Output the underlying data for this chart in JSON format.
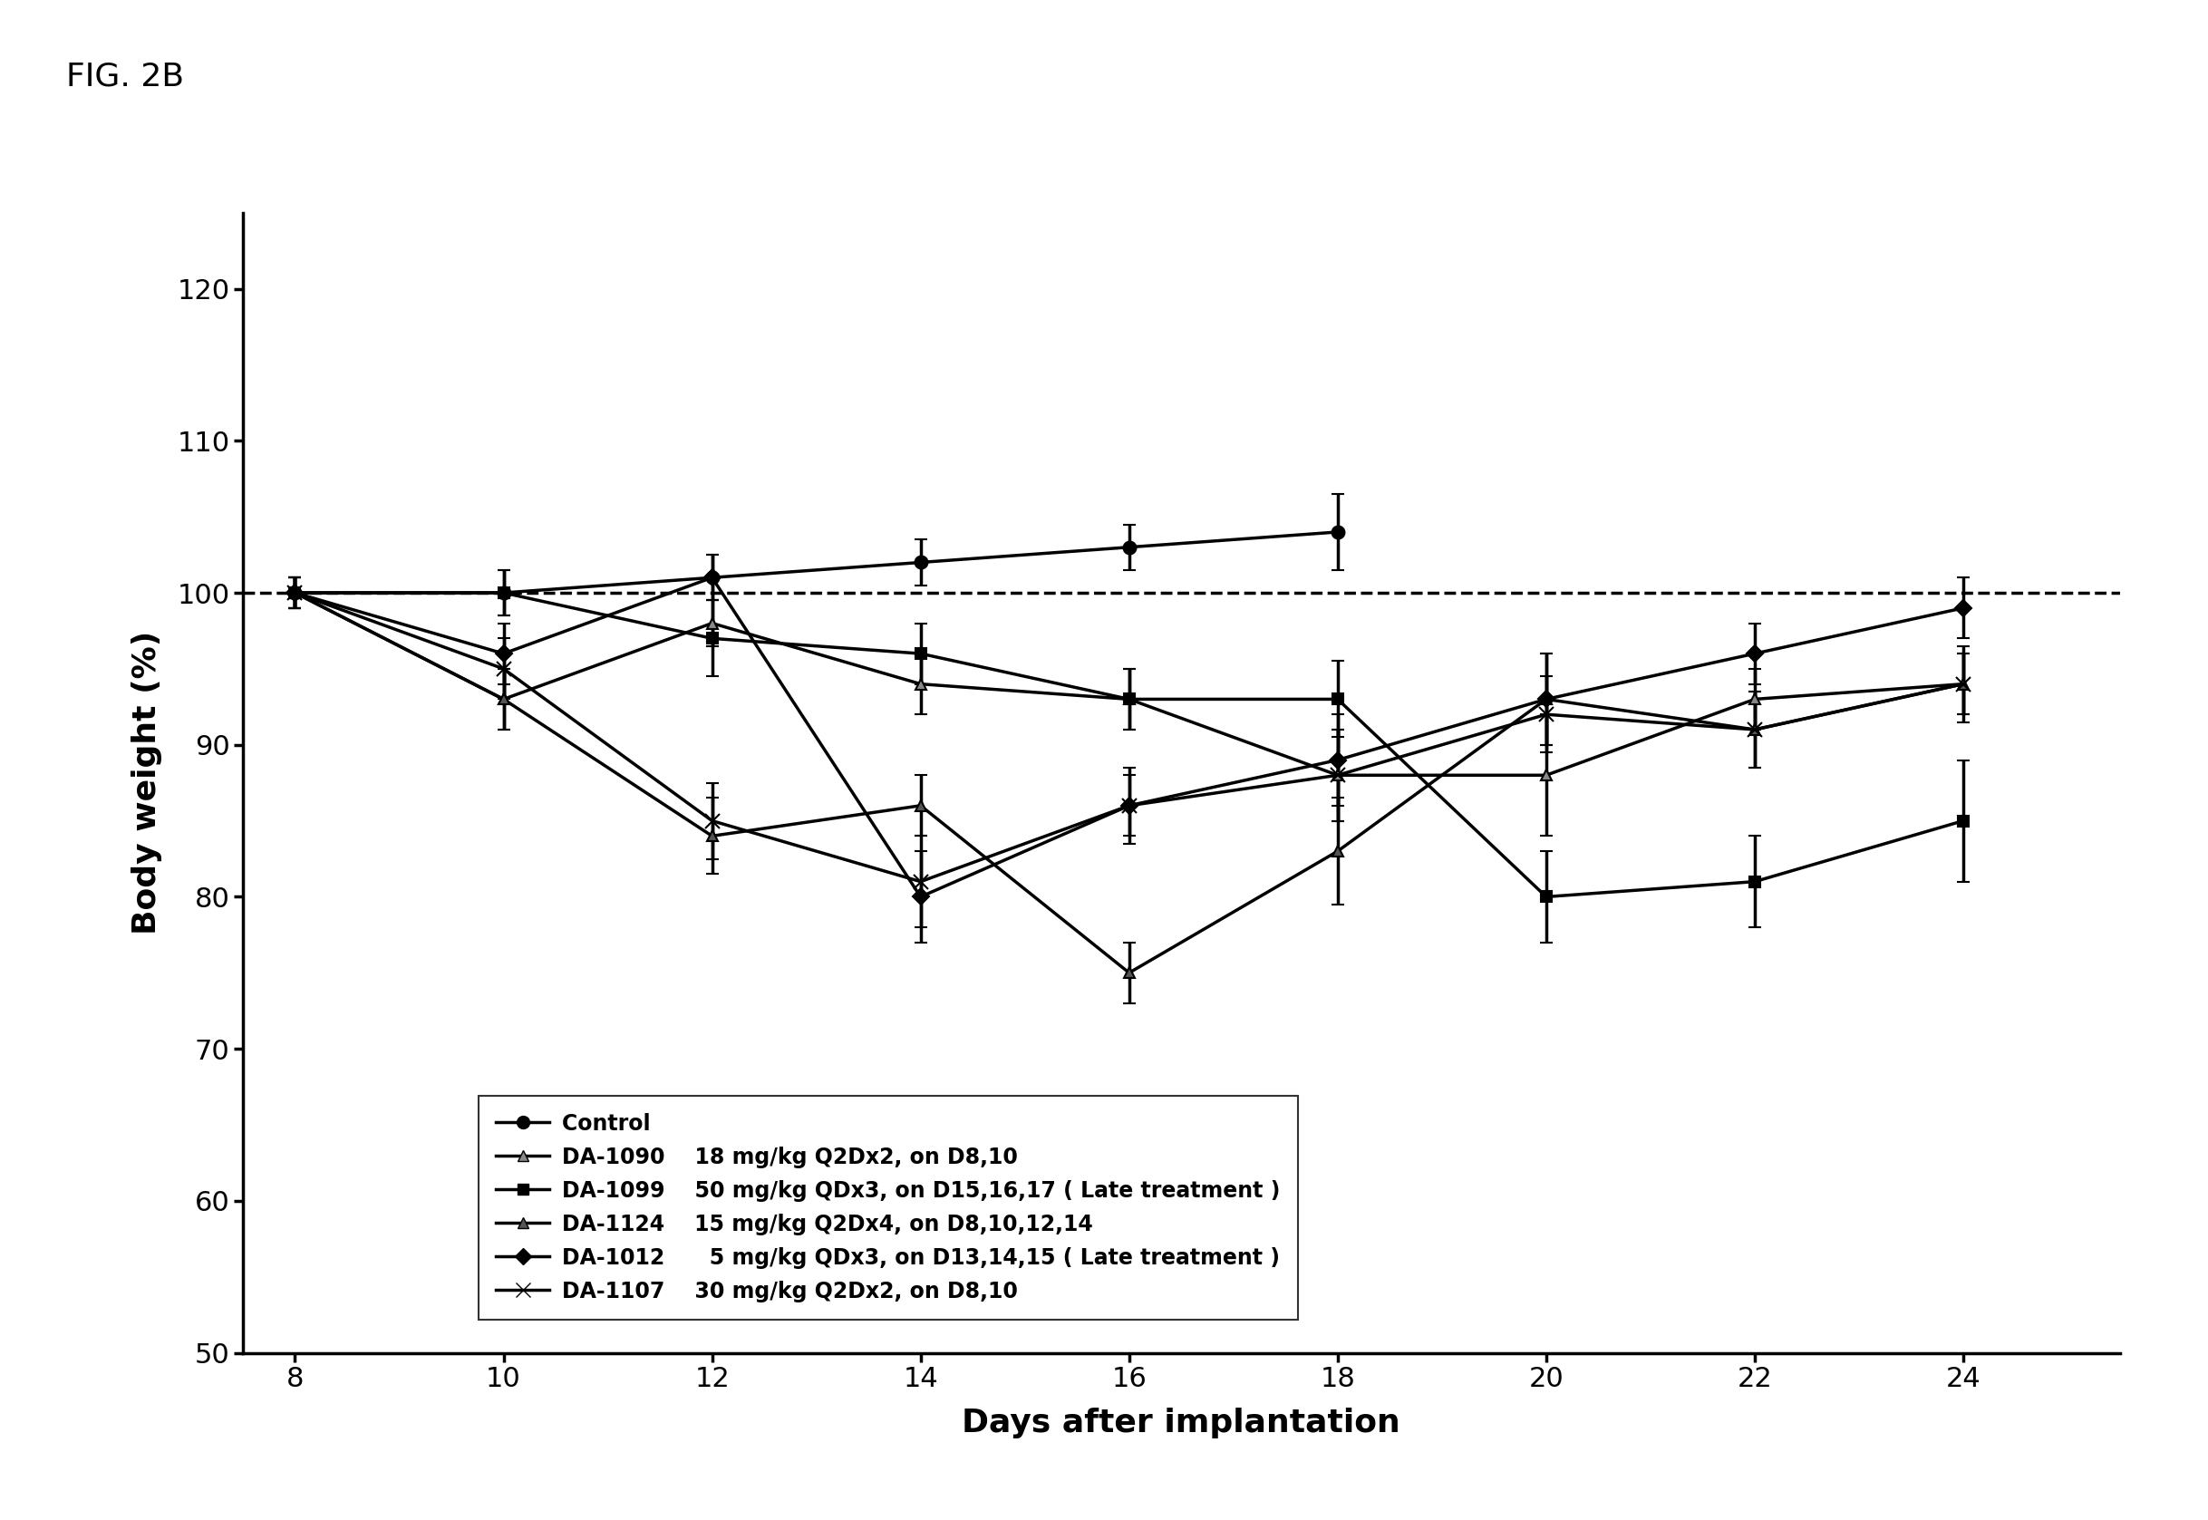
{
  "title": "FIG. 2B",
  "xlabel": "Days after implantation",
  "ylabel": "Body weight (%)",
  "xlim": [
    7.5,
    25.5
  ],
  "ylim": [
    50,
    125
  ],
  "yticks": [
    50,
    60,
    70,
    80,
    90,
    100,
    110,
    120
  ],
  "xticks": [
    8,
    10,
    12,
    14,
    16,
    18,
    20,
    22,
    24
  ],
  "dashed_line_y": 100,
  "series": [
    {
      "name": "Control",
      "legend_name": "Control",
      "legend_desc": "",
      "x": [
        8,
        10,
        12,
        14,
        16,
        18
      ],
      "y": [
        100,
        100,
        101,
        102,
        103,
        104
      ],
      "yerr": [
        1.0,
        1.5,
        1.5,
        1.5,
        1.5,
        2.5
      ],
      "marker": "o",
      "markersize": 10,
      "linewidth": 2.5,
      "color": "#000000",
      "markerfacecolor": "#000000"
    },
    {
      "name": "DA-1090",
      "legend_name": "DA-1090",
      "legend_desc": "18 mg/kg Q2Dx2, on D8,10",
      "x": [
        8,
        10,
        12,
        14,
        16,
        18,
        20,
        22,
        24
      ],
      "y": [
        100,
        93,
        98,
        94,
        93,
        88,
        88,
        93,
        94
      ],
      "yerr": [
        1.0,
        2.0,
        1.5,
        2.0,
        2.0,
        3.0,
        4.0,
        2.0,
        2.0
      ],
      "marker": "^",
      "markersize": 9,
      "linewidth": 2.5,
      "color": "#000000",
      "markerfacecolor": "#888888"
    },
    {
      "name": "DA-1099",
      "legend_name": "DA-1099",
      "legend_desc": "50 mg/kg QDx3, on D15,16,17 ( Late treatment )",
      "x": [
        8,
        10,
        12,
        14,
        16,
        18,
        20,
        22,
        24
      ],
      "y": [
        100,
        100,
        97,
        96,
        93,
        93,
        80,
        81,
        85
      ],
      "yerr": [
        1.0,
        1.5,
        2.5,
        2.0,
        2.0,
        2.5,
        3.0,
        3.0,
        4.0
      ],
      "marker": "s",
      "markersize": 9,
      "linewidth": 2.5,
      "color": "#000000",
      "markerfacecolor": "#000000"
    },
    {
      "name": "DA-1124",
      "legend_name": "DA-1124",
      "legend_desc": "15 mg/kg Q2Dx4, on D8,10,12,14",
      "x": [
        8,
        10,
        12,
        14,
        16,
        18,
        20,
        22,
        24
      ],
      "y": [
        100,
        93,
        84,
        86,
        75,
        83,
        93,
        91,
        94
      ],
      "yerr": [
        1.0,
        2.0,
        2.5,
        2.0,
        2.0,
        3.5,
        3.0,
        2.5,
        2.5
      ],
      "marker": "^",
      "markersize": 9,
      "linewidth": 2.5,
      "color": "#000000",
      "markerfacecolor": "#555555"
    },
    {
      "name": "DA-1012",
      "legend_name": "DA-1012",
      "legend_desc": "  5 mg/kg QDx3, on D13,14,15 ( Late treatment )",
      "x": [
        8,
        10,
        12,
        14,
        16,
        18,
        20,
        22,
        24
      ],
      "y": [
        100,
        96,
        101,
        80,
        86,
        89,
        93,
        96,
        99
      ],
      "yerr": [
        1.0,
        2.0,
        1.5,
        3.0,
        2.0,
        3.0,
        3.0,
        2.0,
        2.0
      ],
      "marker": "D",
      "markersize": 9,
      "linewidth": 2.5,
      "color": "#000000",
      "markerfacecolor": "#000000"
    },
    {
      "name": "DA-1107",
      "legend_name": "DA-1107",
      "legend_desc": "30 mg/kg Q2Dx2, on D8,10",
      "x": [
        8,
        10,
        12,
        14,
        16,
        18,
        20,
        22,
        24
      ],
      "y": [
        100,
        95,
        85,
        81,
        86,
        88,
        92,
        91,
        94
      ],
      "yerr": [
        1.0,
        2.0,
        2.5,
        3.0,
        2.5,
        3.0,
        2.5,
        2.5,
        2.0
      ],
      "marker": "x",
      "markersize": 12,
      "linewidth": 2.5,
      "color": "#000000",
      "markerfacecolor": "#000000"
    }
  ],
  "background_color": "#ffffff",
  "fig_label_fontsize": 26,
  "axis_label_fontsize": 26,
  "tick_fontsize": 22,
  "legend_fontsize": 17
}
